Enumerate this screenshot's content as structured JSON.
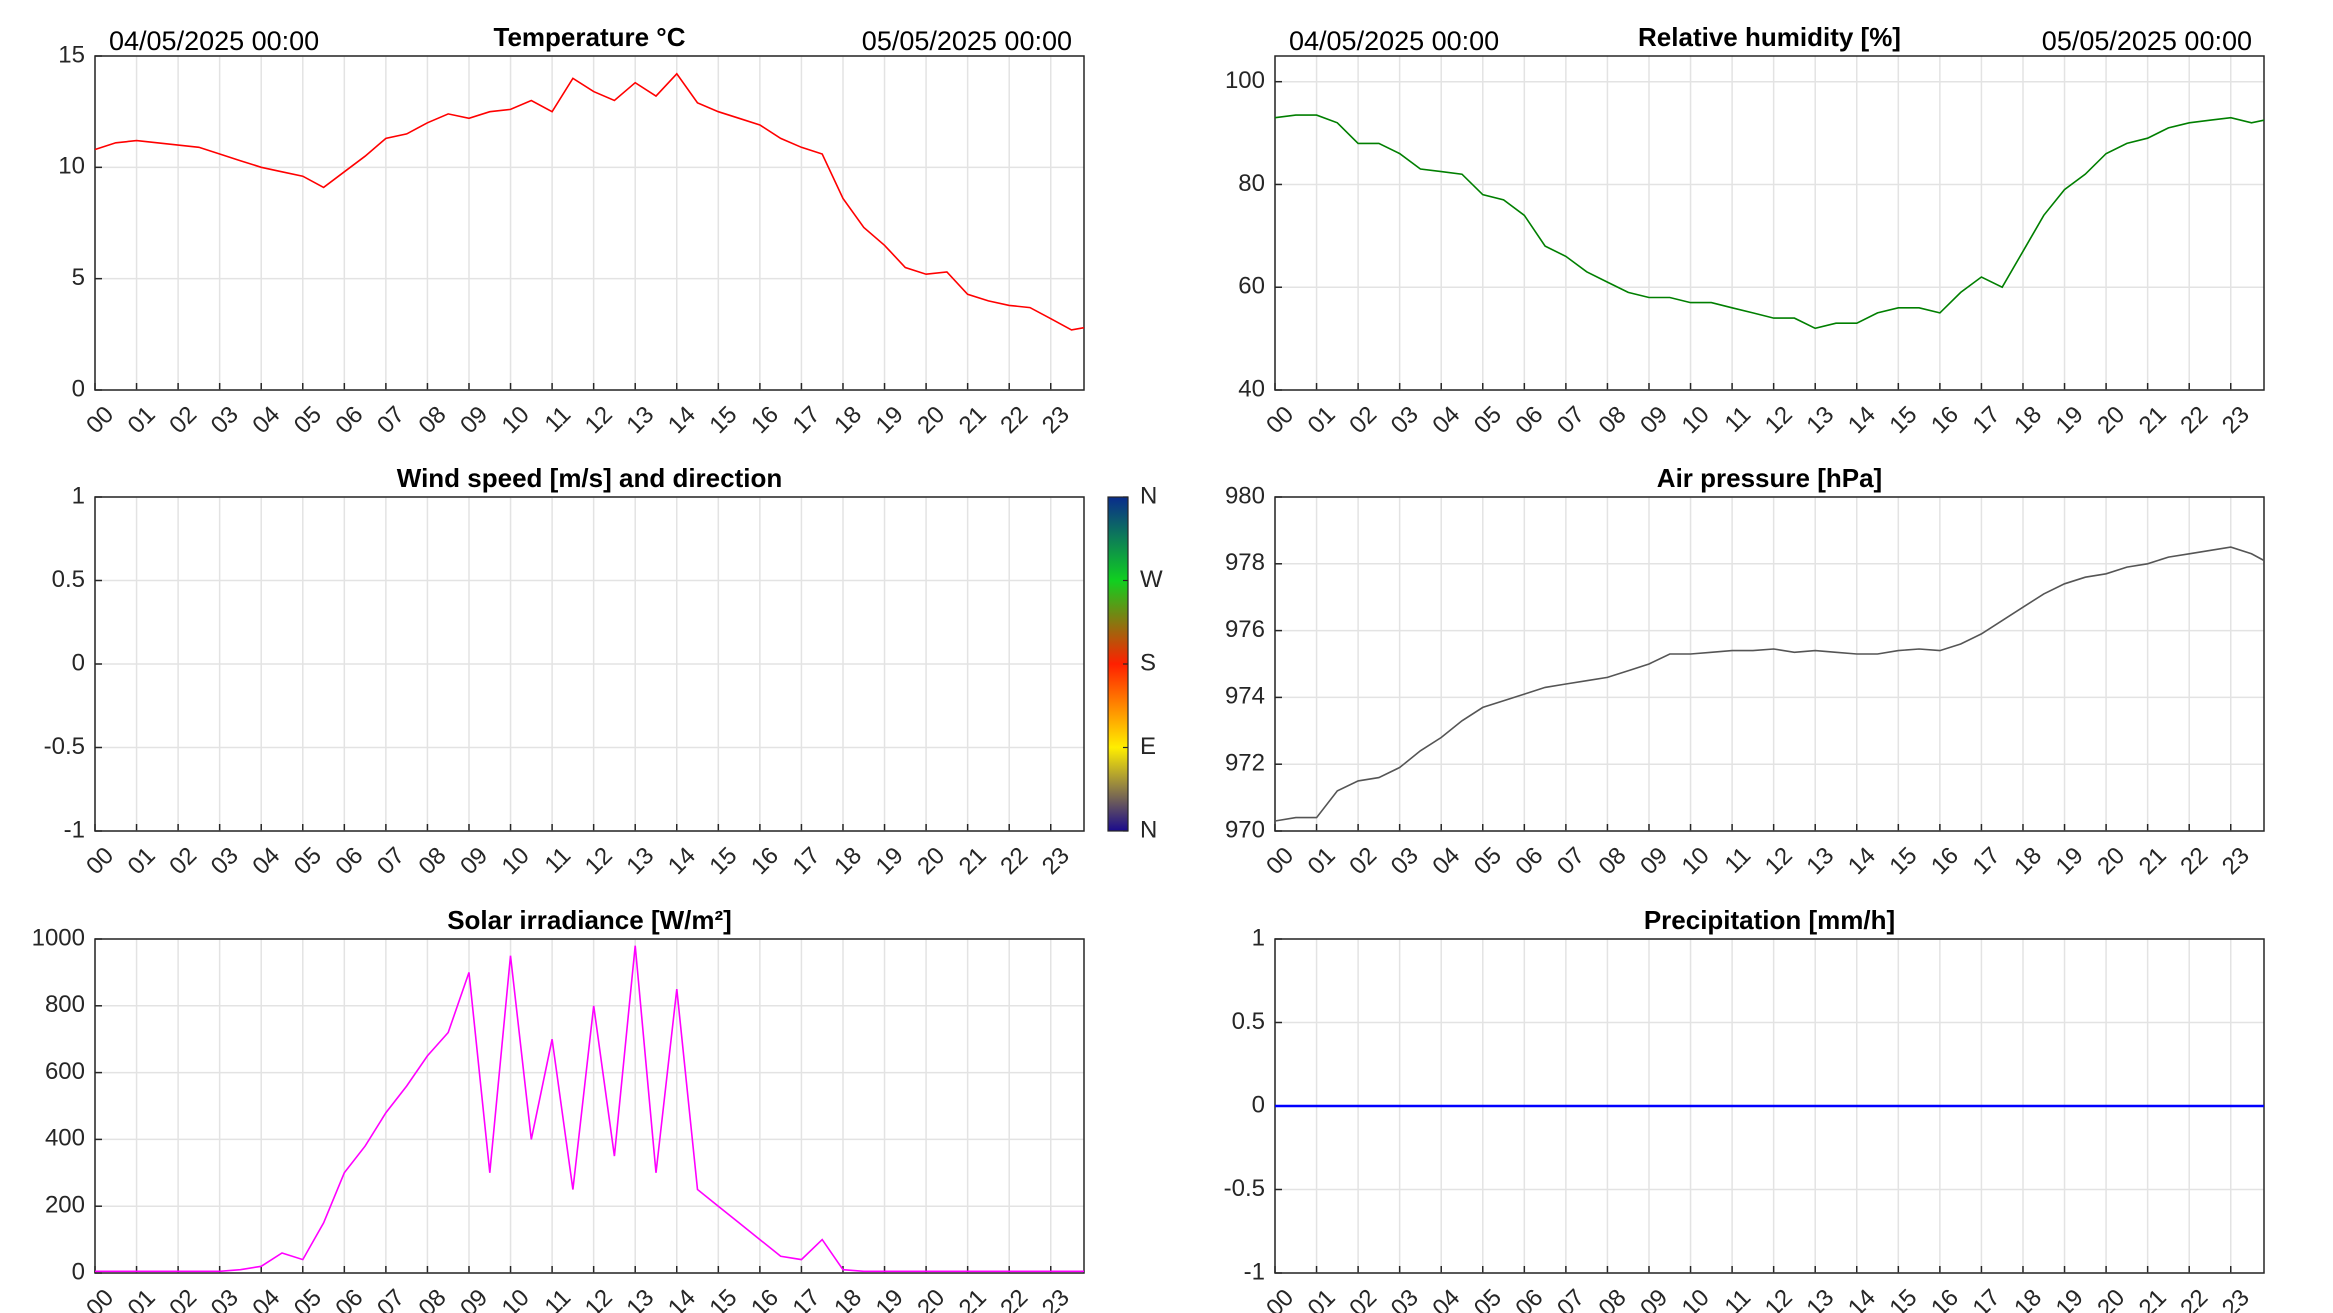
{
  "chart_data": [
    {
      "type": "line",
      "title": "Temperature °C",
      "annotations": [
        "04/05/2025 00:00",
        "05/05/2025 00:00"
      ],
      "color": "#ff0000",
      "x": [
        0,
        0.5,
        1,
        1.5,
        2,
        2.5,
        3,
        3.5,
        4,
        4.5,
        5,
        5.5,
        6,
        6.5,
        7,
        7.5,
        8,
        8.5,
        9,
        9.5,
        10,
        10.5,
        11,
        11.5,
        12,
        12.5,
        13,
        13.5,
        14,
        14.5,
        15,
        15.5,
        16,
        16.5,
        17,
        17.5,
        18,
        18.5,
        19,
        19.5,
        20,
        20.5,
        21,
        21.5,
        22,
        22.5,
        23,
        23.5,
        23.8
      ],
      "values": [
        10.8,
        11.1,
        11.2,
        11.1,
        11.0,
        10.9,
        10.6,
        10.3,
        10.0,
        9.8,
        9.6,
        9.1,
        9.8,
        10.5,
        11.3,
        11.5,
        12.0,
        12.4,
        12.2,
        12.5,
        12.6,
        13.0,
        12.5,
        14.0,
        13.4,
        13.0,
        13.8,
        13.2,
        14.2,
        12.9,
        12.5,
        12.2,
        11.9,
        11.3,
        10.9,
        10.6,
        8.6,
        7.3,
        6.5,
        5.5,
        5.2,
        5.3,
        4.3,
        4.0,
        3.8,
        3.7,
        3.2,
        2.7,
        2.8
      ],
      "xlim": [
        0,
        23.8
      ],
      "ylim": [
        0,
        15
      ],
      "yticks": [
        0,
        5,
        10,
        15
      ],
      "grid": true,
      "xticks": [
        {
          "value": 0,
          "label": "00"
        },
        {
          "value": 1,
          "label": "01"
        },
        {
          "value": 2,
          "label": "02"
        },
        {
          "value": 3,
          "label": "03"
        },
        {
          "value": 4,
          "label": "04"
        },
        {
          "value": 5,
          "label": "05"
        },
        {
          "value": 6,
          "label": "06"
        },
        {
          "value": 7,
          "label": "07"
        },
        {
          "value": 8,
          "label": "08"
        },
        {
          "value": 9,
          "label": "09"
        },
        10,
        11,
        12,
        13,
        14,
        15,
        16,
        17,
        18,
        19,
        20,
        21,
        22,
        23
      ]
    },
    {
      "type": "line",
      "title": "Relative humidity [%]",
      "annotations": [
        "04/05/2025 00:00",
        "05/05/2025 00:00"
      ],
      "color": "#007f00",
      "x": [
        0,
        0.5,
        1,
        1.5,
        2,
        2.5,
        3,
        3.5,
        4,
        4.5,
        5,
        5.5,
        6,
        6.5,
        7,
        7.5,
        8,
        8.5,
        9,
        9.5,
        10,
        10.5,
        11,
        11.5,
        12,
        12.5,
        13,
        13.5,
        14,
        14.5,
        15,
        15.5,
        16,
        16.5,
        17,
        17.5,
        18,
        18.5,
        19,
        19.5,
        20,
        20.5,
        21,
        21.5,
        22,
        22.5,
        23,
        23.5,
        23.8
      ],
      "values": [
        93,
        93.5,
        93.5,
        92,
        88,
        88,
        86,
        83,
        82.5,
        82,
        78,
        77,
        74,
        68,
        66,
        63,
        61,
        59,
        58,
        58,
        57,
        57,
        56,
        55,
        54,
        54,
        52,
        53,
        53,
        55,
        56,
        56,
        55,
        59,
        62,
        60,
        67,
        74,
        79,
        82,
        86,
        88,
        89,
        91,
        92,
        92.5,
        93,
        92,
        92.5
      ],
      "xlim": [
        0,
        23.8
      ],
      "ylim": [
        40,
        105
      ],
      "yticks": [
        40,
        60,
        80,
        100
      ],
      "grid": true,
      "xticks": [
        {
          "value": 0,
          "label": "00"
        },
        {
          "value": 1,
          "label": "01"
        },
        {
          "value": 2,
          "label": "02"
        },
        {
          "value": 3,
          "label": "03"
        },
        {
          "value": 4,
          "label": "04"
        },
        {
          "value": 5,
          "label": "05"
        },
        {
          "value": 6,
          "label": "06"
        },
        {
          "value": 7,
          "label": "07"
        },
        {
          "value": 8,
          "label": "08"
        },
        {
          "value": 9,
          "label": "09"
        },
        10,
        11,
        12,
        13,
        14,
        15,
        16,
        17,
        18,
        19,
        20,
        21,
        22,
        23
      ]
    },
    {
      "type": "line",
      "title": "Wind speed [m/s] and direction",
      "colorbar": [
        "N",
        "W",
        "S",
        "E",
        "N"
      ],
      "xlim": [
        0,
        23.8
      ],
      "ylim": [
        -1,
        1
      ],
      "yticks": [
        -1,
        -0.5,
        0,
        0.5,
        1
      ],
      "grid": true,
      "xticks": [
        {
          "value": 0,
          "label": "00"
        },
        {
          "value": 1,
          "label": "01"
        },
        {
          "value": 2,
          "label": "02"
        },
        {
          "value": 3,
          "label": "03"
        },
        {
          "value": 4,
          "label": "04"
        },
        {
          "value": 5,
          "label": "05"
        },
        {
          "value": 6,
          "label": "06"
        },
        {
          "value": 7,
          "label": "07"
        },
        {
          "value": 8,
          "label": "08"
        },
        {
          "value": 9,
          "label": "09"
        },
        10,
        11,
        12,
        13,
        14,
        15,
        16,
        17,
        18,
        19,
        20,
        21,
        22,
        23
      ]
    },
    {
      "type": "line",
      "title": "Air pressure [hPa]",
      "color": "#555555",
      "x": [
        0,
        0.5,
        1,
        1.5,
        2,
        2.5,
        3,
        3.5,
        4,
        4.5,
        5,
        5.5,
        6,
        6.5,
        7,
        7.5,
        8,
        8.5,
        9,
        9.5,
        10,
        10.5,
        11,
        11.5,
        12,
        12.5,
        13,
        13.5,
        14,
        14.5,
        15,
        15.5,
        16,
        16.5,
        17,
        17.5,
        18,
        18.5,
        19,
        19.5,
        20,
        20.5,
        21,
        21.5,
        22,
        22.5,
        23,
        23.5,
        23.8
      ],
      "values": [
        970.3,
        970.4,
        970.4,
        971.2,
        971.5,
        971.6,
        971.9,
        972.4,
        972.8,
        973.3,
        973.7,
        973.9,
        974.1,
        974.3,
        974.4,
        974.5,
        974.6,
        974.8,
        975.0,
        975.3,
        975.3,
        975.35,
        975.4,
        975.4,
        975.45,
        975.35,
        975.4,
        975.35,
        975.3,
        975.3,
        975.4,
        975.45,
        975.4,
        975.6,
        975.9,
        976.3,
        976.7,
        977.1,
        977.4,
        977.6,
        977.7,
        977.9,
        978.0,
        978.2,
        978.3,
        978.4,
        978.5,
        978.3,
        978.1
      ],
      "xlim": [
        0,
        23.8
      ],
      "ylim": [
        970,
        980
      ],
      "yticks": [
        970,
        972,
        974,
        976,
        978,
        980
      ],
      "grid": true,
      "xticks": [
        {
          "value": 0,
          "label": "00"
        },
        {
          "value": 1,
          "label": "01"
        },
        {
          "value": 2,
          "label": "02"
        },
        {
          "value": 3,
          "label": "03"
        },
        {
          "value": 4,
          "label": "04"
        },
        {
          "value": 5,
          "label": "05"
        },
        {
          "value": 6,
          "label": "06"
        },
        {
          "value": 7,
          "label": "07"
        },
        {
          "value": 8,
          "label": "08"
        },
        {
          "value": 9,
          "label": "09"
        },
        10,
        11,
        12,
        13,
        14,
        15,
        16,
        17,
        18,
        19,
        20,
        21,
        22,
        23
      ]
    },
    {
      "type": "line",
      "title": "Solar irradiance [W/m²]",
      "color": "#ff00ff",
      "x": [
        0,
        0.5,
        1,
        1.5,
        2,
        2.5,
        3,
        3.5,
        4,
        4.5,
        5,
        5.5,
        6,
        6.5,
        7,
        7.5,
        8,
        8.5,
        9,
        9.5,
        10,
        10.5,
        11,
        11.5,
        12,
        12.5,
        13,
        13.5,
        14,
        14.5,
        15,
        15.5,
        16,
        16.5,
        17,
        17.5,
        18,
        18.5,
        19,
        19.5,
        20,
        20.5,
        21,
        21.5,
        22,
        22.5,
        23,
        23.5,
        23.8
      ],
      "values": [
        5,
        5,
        5,
        5,
        5,
        5,
        5,
        10,
        20,
        60,
        40,
        150,
        300,
        380,
        480,
        560,
        650,
        720,
        900,
        300,
        950,
        400,
        700,
        250,
        800,
        350,
        980,
        300,
        850,
        250,
        200,
        150,
        100,
        50,
        40,
        100,
        10,
        5,
        5,
        5,
        5,
        5,
        5,
        5,
        5,
        5,
        5,
        5,
        5
      ],
      "xlim": [
        0,
        23.8
      ],
      "ylim": [
        0,
        1000
      ],
      "yticks": [
        0,
        200,
        400,
        600,
        800,
        1000
      ],
      "grid": true,
      "xticks": [
        {
          "value": 0,
          "label": "00"
        },
        {
          "value": 1,
          "label": "01"
        },
        {
          "value": 2,
          "label": "02"
        },
        {
          "value": 3,
          "label": "03"
        },
        {
          "value": 4,
          "label": "04"
        },
        {
          "value": 5,
          "label": "05"
        },
        {
          "value": 6,
          "label": "06"
        },
        {
          "value": 7,
          "label": "07"
        },
        {
          "value": 8,
          "label": "08"
        },
        {
          "value": 9,
          "label": "09"
        },
        10,
        11,
        12,
        13,
        14,
        15,
        16,
        17,
        18,
        19,
        20,
        21,
        22,
        23
      ]
    },
    {
      "type": "line",
      "title": "Precipitation [mm/h]",
      "color": "#0000ff",
      "x": [
        0,
        23.8
      ],
      "values": [
        0,
        0
      ],
      "xlim": [
        0,
        23.8
      ],
      "ylim": [
        -1,
        1
      ],
      "yticks": [
        -1,
        -0.5,
        0,
        0.5,
        1
      ],
      "grid": true,
      "xticks": [
        {
          "value": 0,
          "label": "00"
        },
        {
          "value": 1,
          "label": "01"
        },
        {
          "value": 2,
          "label": "02"
        },
        {
          "value": 3,
          "label": "03"
        },
        {
          "value": 4,
          "label": "04"
        },
        {
          "value": 5,
          "label": "05"
        },
        {
          "value": 6,
          "label": "06"
        },
        {
          "value": 7,
          "label": "07"
        },
        {
          "value": 8,
          "label": "08"
        },
        {
          "value": 9,
          "label": "09"
        },
        10,
        11,
        12,
        13,
        14,
        15,
        16,
        17,
        18,
        19,
        20,
        21,
        22,
        23
      ]
    }
  ]
}
